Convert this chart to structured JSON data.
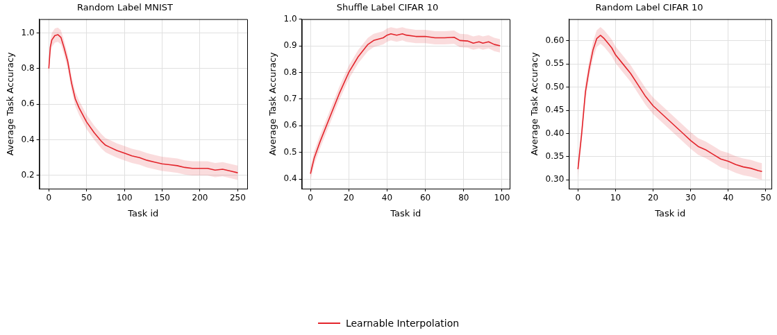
{
  "chart_data": [
    {
      "type": "line",
      "title": "Random Label MNIST",
      "xlabel": "Task id",
      "ylabel": "Average Task Accuracy",
      "legend": "bottom",
      "grid": true,
      "x": [
        0,
        2,
        4,
        8,
        12,
        16,
        20,
        25,
        30,
        35,
        40,
        50,
        60,
        70,
        75,
        80,
        90,
        100,
        110,
        120,
        130,
        140,
        150,
        160,
        170,
        180,
        190,
        200,
        210,
        220,
        230,
        240,
        250
      ],
      "series": [
        {
          "name": "Learnable Interpolation",
          "color": "#e3242b",
          "values": [
            0.8,
            0.92,
            0.96,
            0.985,
            0.99,
            0.975,
            0.92,
            0.84,
            0.72,
            0.63,
            0.58,
            0.5,
            0.44,
            0.39,
            0.37,
            0.36,
            0.34,
            0.325,
            0.31,
            0.3,
            0.285,
            0.275,
            0.265,
            0.26,
            0.255,
            0.245,
            0.24,
            0.24,
            0.24,
            0.23,
            0.235,
            0.225,
            0.215
          ],
          "lower": [
            0.76,
            0.88,
            0.92,
            0.945,
            0.95,
            0.935,
            0.88,
            0.8,
            0.68,
            0.59,
            0.54,
            0.46,
            0.4,
            0.35,
            0.33,
            0.32,
            0.3,
            0.285,
            0.27,
            0.26,
            0.245,
            0.235,
            0.225,
            0.22,
            0.215,
            0.205,
            0.2,
            0.2,
            0.2,
            0.19,
            0.195,
            0.185,
            0.175
          ],
          "upper": [
            0.84,
            0.96,
            1.0,
            1.025,
            1.03,
            1.015,
            0.96,
            0.88,
            0.76,
            0.67,
            0.62,
            0.54,
            0.48,
            0.43,
            0.41,
            0.4,
            0.38,
            0.365,
            0.35,
            0.34,
            0.325,
            0.315,
            0.305,
            0.3,
            0.295,
            0.285,
            0.28,
            0.28,
            0.28,
            0.27,
            0.275,
            0.265,
            0.255
          ]
        }
      ],
      "xlim": [
        -12.5,
        262.5
      ],
      "xticks": [
        0,
        50,
        100,
        150,
        200,
        250
      ],
      "ylim": [
        0.126,
        1.077
      ],
      "yticks": [
        0.2,
        0.4,
        0.6,
        0.8,
        {
          "value": 1,
          "label": "1.0"
        }
      ]
    },
    {
      "type": "line",
      "title": "Shuffle Label CIFAR 10",
      "xlabel": "Task id",
      "ylabel": "Average Task Accuracy",
      "grid": true,
      "x": [
        0,
        2,
        5,
        10,
        15,
        20,
        25,
        30,
        33,
        38,
        40,
        42,
        45,
        48,
        50,
        55,
        60,
        65,
        70,
        75,
        78,
        82,
        85,
        88,
        90,
        93,
        96,
        99
      ],
      "series": [
        {
          "color": "#e3242b",
          "values": [
            0.42,
            0.48,
            0.54,
            0.63,
            0.72,
            0.8,
            0.86,
            0.905,
            0.92,
            0.93,
            0.94,
            0.945,
            0.94,
            0.945,
            0.94,
            0.935,
            0.935,
            0.93,
            0.93,
            0.932,
            0.92,
            0.918,
            0.91,
            0.915,
            0.91,
            0.915,
            0.905,
            0.9
          ],
          "lower": [
            0.395,
            0.455,
            0.515,
            0.605,
            0.695,
            0.775,
            0.835,
            0.88,
            0.895,
            0.905,
            0.915,
            0.92,
            0.915,
            0.92,
            0.915,
            0.91,
            0.91,
            0.905,
            0.905,
            0.907,
            0.895,
            0.893,
            0.885,
            0.89,
            0.885,
            0.89,
            0.88,
            0.875
          ],
          "upper": [
            0.445,
            0.505,
            0.565,
            0.655,
            0.745,
            0.825,
            0.885,
            0.93,
            0.945,
            0.955,
            0.965,
            0.97,
            0.965,
            0.97,
            0.965,
            0.96,
            0.96,
            0.955,
            0.955,
            0.957,
            0.945,
            0.943,
            0.935,
            0.94,
            0.935,
            0.94,
            0.93,
            0.925
          ]
        }
      ],
      "xlim": [
        -4.5,
        104
      ],
      "xticks": [
        0,
        20,
        40,
        60,
        80,
        100
      ],
      "ylim": [
        0.364,
        1.0
      ],
      "yticks": [
        0.4,
        0.5,
        0.6,
        0.7,
        0.8,
        0.9,
        {
          "value": 1,
          "label": "1.0"
        }
      ]
    },
    {
      "type": "line",
      "title": "Random Label CIFAR 10",
      "xlabel": "Task id",
      "ylabel": "Average Task Accuracy",
      "grid": true,
      "x": [
        0,
        1,
        2,
        3,
        4,
        5,
        6,
        7,
        8,
        9,
        10,
        12,
        14,
        16,
        18,
        20,
        22,
        24,
        26,
        28,
        30,
        32,
        34,
        36,
        38,
        40,
        42,
        44,
        46,
        48,
        49
      ],
      "series": [
        {
          "color": "#e3242b",
          "values": [
            0.323,
            0.4,
            0.49,
            0.54,
            0.58,
            0.605,
            0.612,
            0.605,
            0.595,
            0.585,
            0.57,
            0.55,
            0.53,
            0.505,
            0.48,
            0.46,
            0.445,
            0.43,
            0.415,
            0.4,
            0.385,
            0.372,
            0.365,
            0.355,
            0.345,
            0.34,
            0.333,
            0.328,
            0.325,
            0.32,
            0.318
          ],
          "lower": [
            0.305,
            0.382,
            0.472,
            0.522,
            0.562,
            0.587,
            0.594,
            0.587,
            0.577,
            0.567,
            0.552,
            0.532,
            0.512,
            0.487,
            0.462,
            0.442,
            0.427,
            0.412,
            0.397,
            0.382,
            0.367,
            0.354,
            0.347,
            0.337,
            0.327,
            0.322,
            0.315,
            0.31,
            0.307,
            0.302,
            0.3
          ],
          "upper": [
            0.341,
            0.418,
            0.508,
            0.558,
            0.598,
            0.623,
            0.63,
            0.623,
            0.613,
            0.603,
            0.588,
            0.568,
            0.548,
            0.523,
            0.498,
            0.478,
            0.463,
            0.448,
            0.433,
            0.418,
            0.403,
            0.39,
            0.383,
            0.373,
            0.363,
            0.358,
            0.351,
            0.346,
            0.343,
            0.338,
            0.336
          ]
        }
      ],
      "xlim": [
        -2.4,
        51.5
      ],
      "xticks": [
        0,
        10,
        20,
        30,
        40,
        50
      ],
      "ylim": [
        0.281,
        0.647
      ],
      "yticks": [
        {
          "value": 0.3,
          "label": "0.30"
        },
        0.35,
        {
          "value": 0.4,
          "label": "0.40"
        },
        0.45,
        {
          "value": 0.5,
          "label": "0.50"
        },
        0.55,
        {
          "value": 0.6,
          "label": "0.60"
        }
      ]
    }
  ]
}
